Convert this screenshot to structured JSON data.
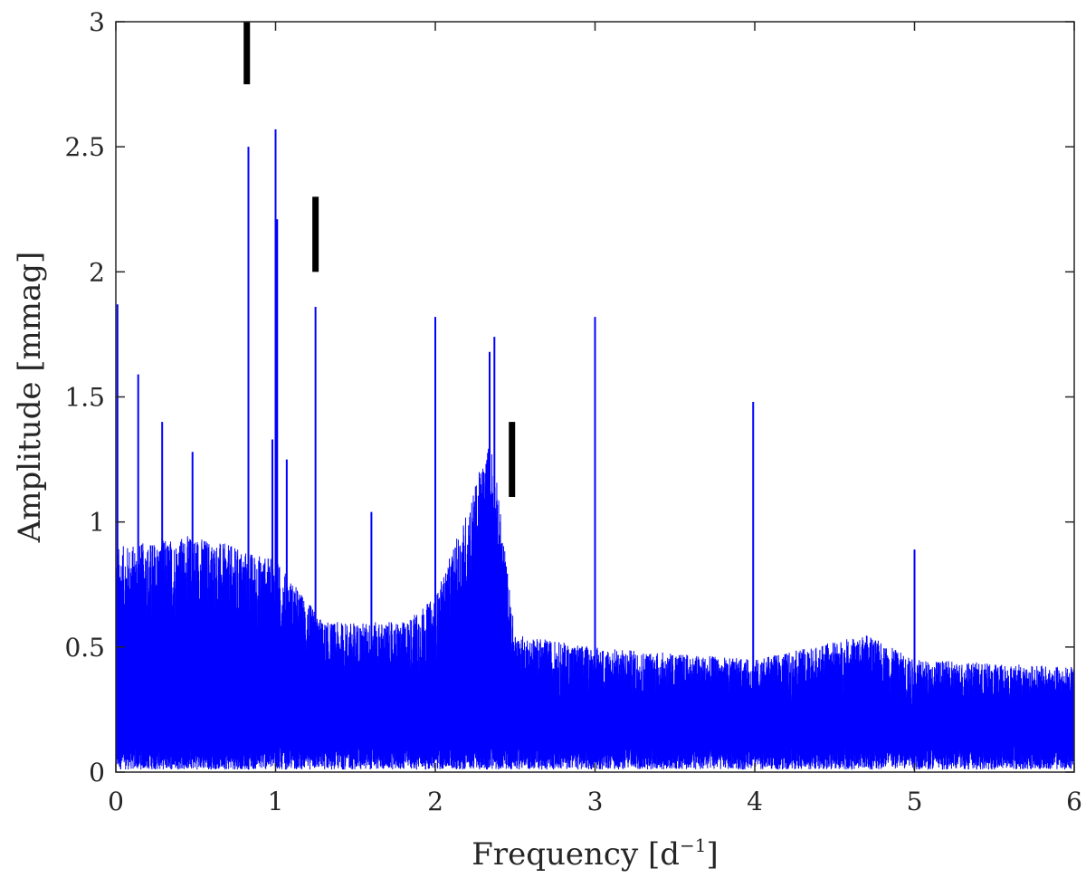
{
  "chart_data": {
    "type": "line",
    "xlabel": "Frequency [d",
    "xlabel_sup": "−1",
    "xlabel_close": "]",
    "ylabel": "Amplitude [mmag]",
    "xlim": [
      0,
      6
    ],
    "ylim": [
      0,
      3
    ],
    "x_ticks": [
      0,
      1,
      2,
      3,
      4,
      5,
      6
    ],
    "y_ticks": [
      0,
      0.5,
      1,
      1.5,
      2,
      2.5,
      3
    ],
    "y_tick_labels": [
      "0",
      "0.5",
      "1",
      "1.5",
      "2",
      "2.5",
      "3"
    ],
    "x_tick_labels": [
      "0",
      "1",
      "2",
      "3",
      "4",
      "5",
      "6"
    ],
    "grid": false,
    "box": true,
    "series": [
      {
        "color": "#0000ff",
        "peaks": [
          {
            "x": 0.01,
            "y": 1.87
          },
          {
            "x": 0.14,
            "y": 1.59
          },
          {
            "x": 0.29,
            "y": 1.4
          },
          {
            "x": 0.48,
            "y": 1.28
          },
          {
            "x": 0.83,
            "y": 2.5
          },
          {
            "x": 0.98,
            "y": 1.33
          },
          {
            "x": 1.0,
            "y": 2.57
          },
          {
            "x": 1.01,
            "y": 2.21
          },
          {
            "x": 1.07,
            "y": 1.25
          },
          {
            "x": 1.25,
            "y": 1.86
          },
          {
            "x": 1.6,
            "y": 1.04
          },
          {
            "x": 2.0,
            "y": 1.82
          },
          {
            "x": 2.34,
            "y": 1.68
          },
          {
            "x": 2.37,
            "y": 1.74
          },
          {
            "x": 3.0,
            "y": 1.82
          },
          {
            "x": 3.99,
            "y": 1.48
          },
          {
            "x": 5.0,
            "y": 0.89
          }
        ],
        "noise_envelope": [
          {
            "x": 0.0,
            "y": 0.9
          },
          {
            "x": 0.5,
            "y": 0.95
          },
          {
            "x": 1.0,
            "y": 0.85
          },
          {
            "x": 1.3,
            "y": 0.6
          },
          {
            "x": 1.8,
            "y": 0.6
          },
          {
            "x": 2.0,
            "y": 0.7
          },
          {
            "x": 2.2,
            "y": 1.05
          },
          {
            "x": 2.35,
            "y": 1.35
          },
          {
            "x": 2.5,
            "y": 0.55
          },
          {
            "x": 3.0,
            "y": 0.5
          },
          {
            "x": 4.0,
            "y": 0.45
          },
          {
            "x": 4.7,
            "y": 0.55
          },
          {
            "x": 5.0,
            "y": 0.45
          },
          {
            "x": 6.0,
            "y": 0.42
          }
        ]
      }
    ],
    "markers": [
      {
        "x": 0.82,
        "y_bottom": 2.75,
        "y_top": 3.0
      },
      {
        "x": 1.25,
        "y_bottom": 2.0,
        "y_top": 2.3
      },
      {
        "x": 2.48,
        "y_bottom": 1.1,
        "y_top": 1.4
      }
    ]
  }
}
